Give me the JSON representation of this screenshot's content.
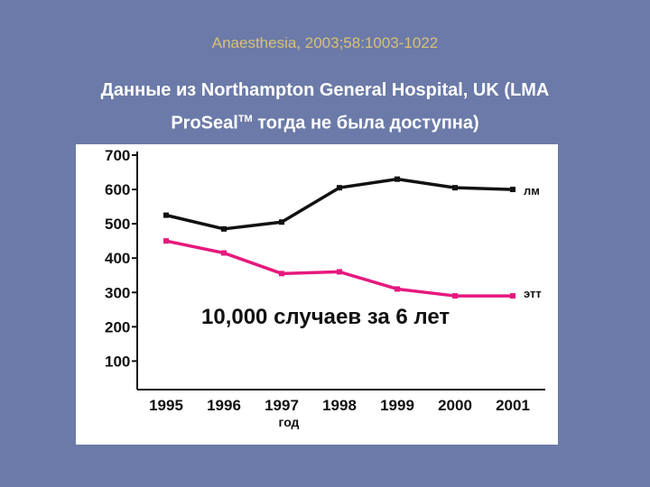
{
  "slide": {
    "citation": "Anaesthesia, 2003;58:1003-1022",
    "heading_line1": "Данные из Northampton General Hospital, UK  (LMA",
    "heading_line2_pre": "ProSeal",
    "heading_line2_sup": "TM",
    "heading_line2_post": " тогда не была доступна)"
  },
  "colors": {
    "background": "#6b7aa8",
    "citation": "#d8c07a",
    "series_lm": "#111111",
    "series_ett": "#e6197d"
  },
  "chart_data": {
    "type": "line",
    "x": [
      "1995",
      "1996",
      "1997",
      "1998",
      "1999",
      "2000",
      "2001"
    ],
    "xlabel": "год",
    "ylabel": "",
    "ylim": [
      0,
      700
    ],
    "yticks": [
      "100",
      "200",
      "300",
      "400",
      "500",
      "600",
      "700"
    ],
    "series": [
      {
        "name": "лм",
        "values": [
          525,
          485,
          505,
          605,
          630,
          605,
          600
        ]
      },
      {
        "name": "этт",
        "values": [
          450,
          415,
          355,
          360,
          310,
          290,
          290
        ]
      }
    ],
    "annotation": "10,000 случаев за 6 лет",
    "grid": false
  }
}
